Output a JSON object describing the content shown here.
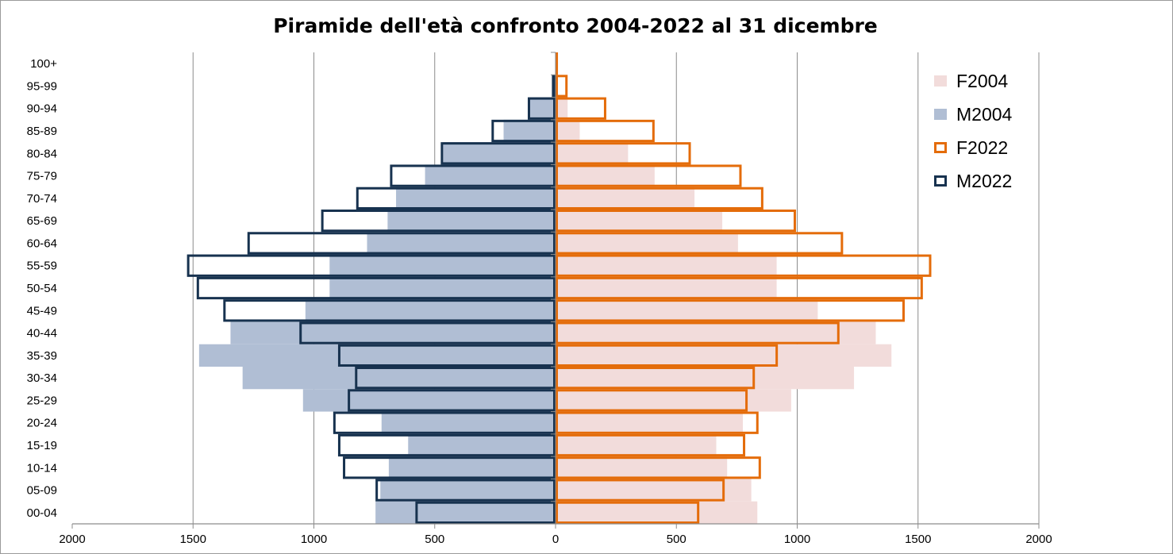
{
  "chart_data": {
    "type": "bar",
    "orientation": "horizontal-population-pyramid",
    "title": "Piramide dell'età confronto 2004-2022 al 31 dicembre",
    "categories": [
      "00-04",
      "05-09",
      "10-14",
      "15-19",
      "20-24",
      "25-29",
      "30-34",
      "35-39",
      "40-44",
      "45-49",
      "50-54",
      "55-59",
      "60-64",
      "65-69",
      "70-74",
      "75-79",
      "80-84",
      "85-89",
      "90-94",
      "95-99",
      "100+"
    ],
    "x_ticks": [
      "2000",
      "1500",
      "1000",
      "500",
      "0",
      "500",
      "1000",
      "1500",
      "2000"
    ],
    "xlim": [
      -2000,
      2000
    ],
    "grid": true,
    "legend_position": "right",
    "series": [
      {
        "name": "F2004",
        "side": "right",
        "style": "filled",
        "color": "#F2DCDB",
        "values": [
          835,
          810,
          710,
          665,
          775,
          975,
          1235,
          1390,
          1325,
          1085,
          915,
          915,
          755,
          690,
          575,
          410,
          300,
          100,
          50,
          10,
          2
        ]
      },
      {
        "name": "M2004",
        "side": "left",
        "style": "filled",
        "color": "#B0BED4",
        "values": [
          745,
          725,
          690,
          610,
          720,
          1045,
          1295,
          1475,
          1345,
          1035,
          935,
          935,
          780,
          695,
          660,
          540,
          465,
          215,
          110,
          15,
          2
        ]
      },
      {
        "name": "F2022",
        "side": "right",
        "style": "outline",
        "color": "#E46C0A",
        "values": [
          595,
          700,
          850,
          785,
          840,
          795,
          825,
          920,
          1175,
          1445,
          1520,
          1555,
          1190,
          995,
          860,
          770,
          560,
          410,
          210,
          50,
          10
        ]
      },
      {
        "name": "M2022",
        "side": "left",
        "style": "outline",
        "color": "#17324F",
        "values": [
          580,
          745,
          880,
          900,
          920,
          860,
          830,
          900,
          1060,
          1375,
          1485,
          1525,
          1275,
          970,
          825,
          685,
          475,
          265,
          115,
          15,
          3
        ]
      }
    ]
  }
}
